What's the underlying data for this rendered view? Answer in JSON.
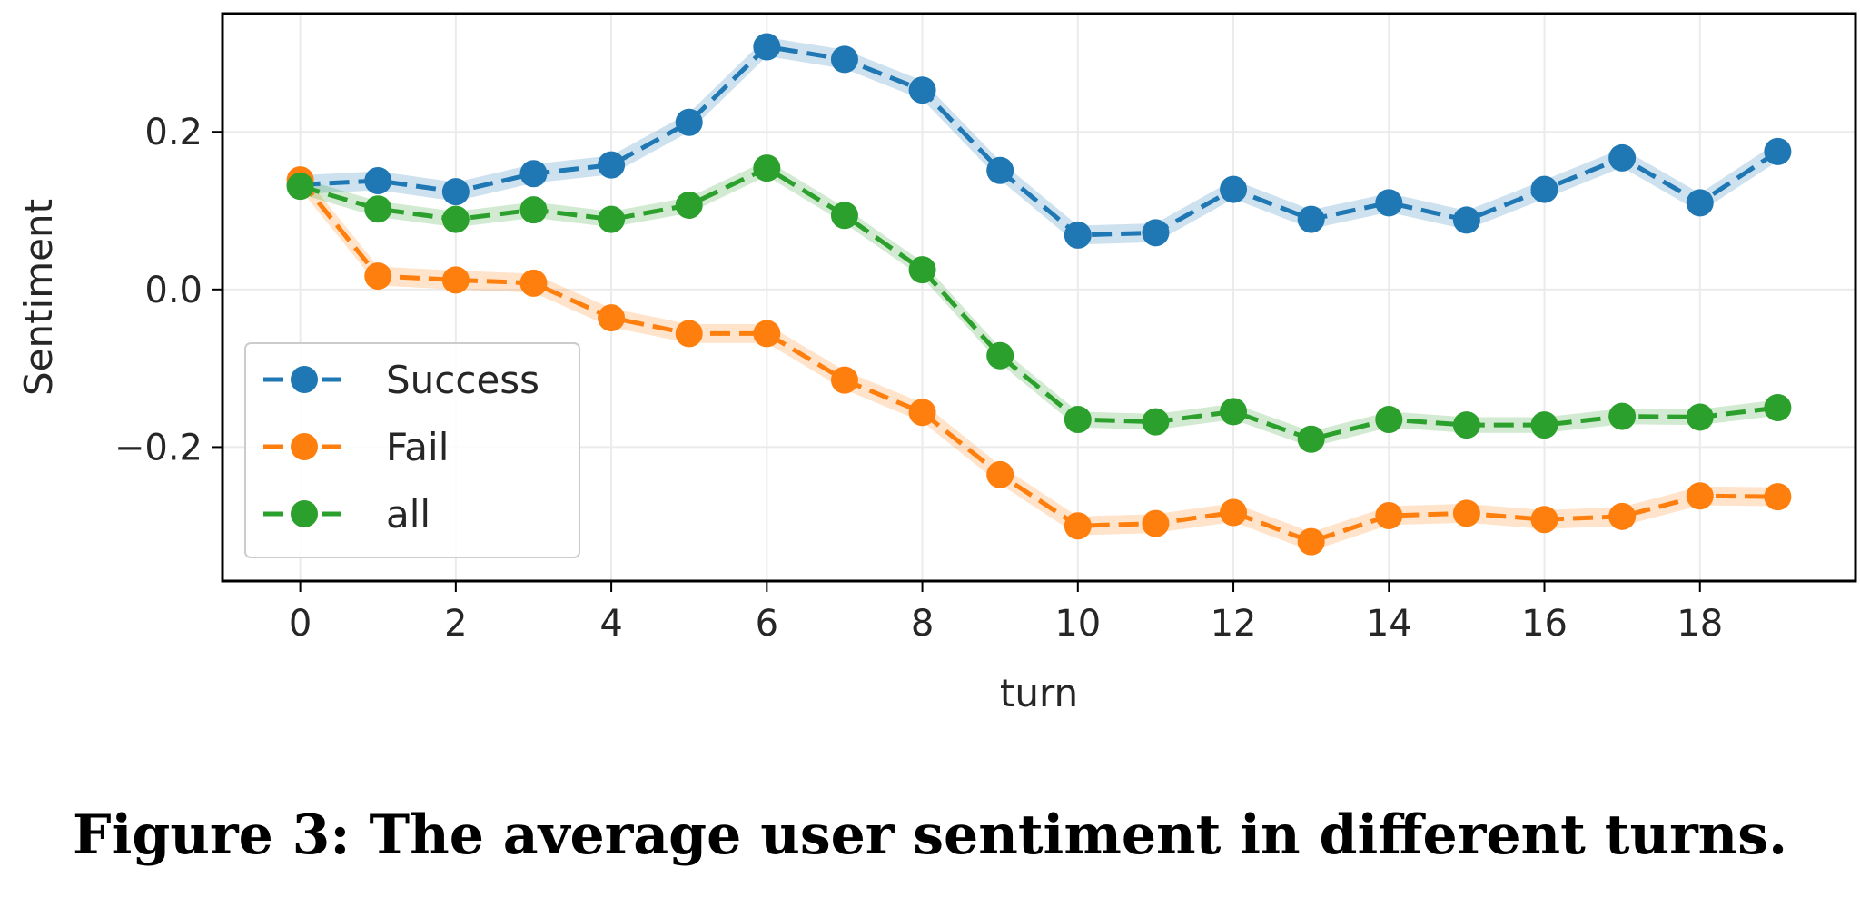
{
  "caption": "Figure 3: The average user sentiment in different turns.",
  "chart_data": {
    "type": "line",
    "xlabel": "turn",
    "ylabel": "Sentiment",
    "x": [
      0,
      1,
      2,
      3,
      4,
      5,
      6,
      7,
      8,
      9,
      10,
      11,
      12,
      13,
      14,
      15,
      16,
      17,
      18,
      19
    ],
    "xlim": [
      -1,
      20
    ],
    "ylim": [
      -0.37,
      0.35
    ],
    "xticks": [
      0,
      2,
      4,
      6,
      8,
      10,
      12,
      14,
      16,
      18
    ],
    "xtick_labels": [
      "0",
      "2",
      "4",
      "6",
      "8",
      "10",
      "12",
      "14",
      "16",
      "18"
    ],
    "yticks": [
      0.2,
      0.0,
      -0.2
    ],
    "ytick_labels": [
      "0.2",
      "0.0",
      "−0.2"
    ],
    "grid": true,
    "legend": "lower-left",
    "series": [
      {
        "name": "Success",
        "color": "#1f77b4",
        "marker": "circle",
        "linestyle": "dashed",
        "values": [
          0.133,
          0.138,
          0.124,
          0.147,
          0.158,
          0.212,
          0.308,
          0.292,
          0.253,
          0.151,
          0.069,
          0.072,
          0.127,
          0.089,
          0.11,
          0.088,
          0.127,
          0.167,
          0.11,
          0.175
        ],
        "band": 0.012
      },
      {
        "name": "Fail",
        "color": "#ff7f0e",
        "marker": "circle",
        "linestyle": "dashed",
        "values": [
          0.139,
          0.017,
          0.012,
          0.008,
          -0.036,
          -0.056,
          -0.056,
          -0.115,
          -0.156,
          -0.235,
          -0.3,
          -0.297,
          -0.283,
          -0.32,
          -0.287,
          -0.284,
          -0.292,
          -0.288,
          -0.262,
          -0.263
        ],
        "band": 0.012
      },
      {
        "name": "all",
        "color": "#2ca02c",
        "marker": "circle",
        "linestyle": "dashed",
        "values": [
          0.131,
          0.102,
          0.089,
          0.101,
          0.089,
          0.107,
          0.154,
          0.094,
          0.025,
          -0.084,
          -0.165,
          -0.168,
          -0.155,
          -0.19,
          -0.165,
          -0.172,
          -0.172,
          -0.161,
          -0.162,
          -0.15
        ],
        "band": 0.01
      }
    ]
  }
}
